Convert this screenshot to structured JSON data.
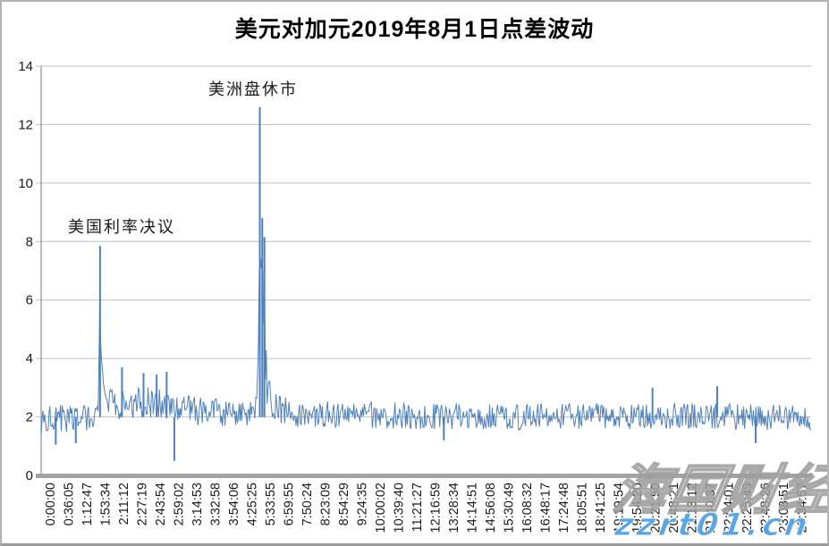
{
  "chart_data": {
    "type": "line",
    "title": "美元对加元2019年8月1日点差波动",
    "xlabel": "",
    "ylabel": "",
    "ylim": [
      0,
      14
    ],
    "y_ticks": [
      0,
      2,
      4,
      6,
      8,
      10,
      12,
      14
    ],
    "grid": true,
    "legend": "none",
    "line_color": "#4f81bd",
    "grid_color": "#bfbfbf",
    "axis_color": "#a3a3a3",
    "tick_label_color": "#1a1a1a",
    "x_tick_labels": [
      "0:00:00",
      "0:36:05",
      "1:12:47",
      "1:53:34",
      "2:11:12",
      "2:27:19",
      "2:43:54",
      "2:59:02",
      "3:14:53",
      "3:32:58",
      "3:54:06",
      "4:25:25",
      "5:33:55",
      "6:59:55",
      "7:50:24",
      "8:23:09",
      "8:54:29",
      "9:24:35",
      "10:00:02",
      "10:39:40",
      "11:21:27",
      "12:16:59",
      "13:28:34",
      "14:14:51",
      "14:56:08",
      "15:30:49",
      "16:08:32",
      "16:48:17",
      "17:24:48",
      "18:05:51",
      "18:41:25",
      "19:19:54",
      "19:54:20",
      "20:21:50",
      "20:48:21",
      "21:13:12",
      "21:40:37",
      "22:04:01",
      "22:25:49",
      "22:48:26",
      "23:08:51",
      "23:34:57"
    ],
    "annotations": [
      {
        "text": "美国利率决议",
        "at_time": "1:53:34",
        "y_value": 8.6
      },
      {
        "text": "美洲盘休市",
        "at_time": "5:33:55",
        "y_value": 13.3
      }
    ],
    "series_description": "bid-ask spread in points, dense 1-second ticks; baseline noise band ~1.5-2.5 all day",
    "center_keypoints": [
      [
        0.0,
        1.95
      ],
      [
        0.07,
        1.95
      ],
      [
        0.074,
        2.1
      ],
      [
        0.0755,
        4.0
      ],
      [
        0.0765,
        6.8
      ],
      [
        0.0775,
        4.2
      ],
      [
        0.079,
        3.3
      ],
      [
        0.085,
        2.6
      ],
      [
        0.095,
        2.4
      ],
      [
        0.13,
        2.5
      ],
      [
        0.165,
        2.4
      ],
      [
        0.2,
        2.2
      ],
      [
        0.27,
        2.1
      ],
      [
        0.2805,
        2.4
      ],
      [
        0.2825,
        4.5
      ],
      [
        0.284,
        8.0
      ],
      [
        0.2855,
        6.8
      ],
      [
        0.2875,
        7.2
      ],
      [
        0.2895,
        6.0
      ],
      [
        0.2915,
        3.8
      ],
      [
        0.295,
        2.6
      ],
      [
        0.305,
        2.3
      ],
      [
        0.33,
        2.1
      ],
      [
        0.6,
        2.0
      ],
      [
        0.8,
        2.05
      ],
      [
        0.9,
        2.0
      ],
      [
        1.0,
        1.95
      ]
    ],
    "amp_keypoints": [
      [
        0.0,
        0.5
      ],
      [
        0.07,
        0.45
      ],
      [
        0.0765,
        0.3
      ],
      [
        0.08,
        0.4
      ],
      [
        0.09,
        0.5
      ],
      [
        0.13,
        0.55
      ],
      [
        0.17,
        0.5
      ],
      [
        0.27,
        0.45
      ],
      [
        0.282,
        0.5
      ],
      [
        0.284,
        1.2
      ],
      [
        0.29,
        1.4
      ],
      [
        0.293,
        0.9
      ],
      [
        0.3,
        0.55
      ],
      [
        0.33,
        0.45
      ],
      [
        1.0,
        0.45
      ]
    ],
    "peaks": [
      {
        "x": 0.019,
        "value": 1.05
      },
      {
        "x": 0.045,
        "value": 1.1
      },
      {
        "x": 0.0765,
        "value": 7.85
      },
      {
        "x": 0.105,
        "value": 3.7
      },
      {
        "x": 0.133,
        "value": 3.5
      },
      {
        "x": 0.15,
        "value": 3.45
      },
      {
        "x": 0.163,
        "value": 3.55
      },
      {
        "x": 0.173,
        "value": 0.5
      },
      {
        "x": 0.284,
        "value": 12.6
      },
      {
        "x": 0.2872,
        "value": 8.8
      },
      {
        "x": 0.29,
        "value": 8.15
      },
      {
        "x": 0.523,
        "value": 1.2
      },
      {
        "x": 0.794,
        "value": 3.0
      },
      {
        "x": 0.878,
        "value": 3.05
      },
      {
        "x": 0.928,
        "value": 1.1
      }
    ],
    "noise": {
      "points": 880,
      "seed": 20190801,
      "baseline": 2.0
    }
  },
  "watermark": {
    "brand_text": "海国财经",
    "url_text": "zzrt01.cn",
    "url_color": "#58a6e6"
  }
}
